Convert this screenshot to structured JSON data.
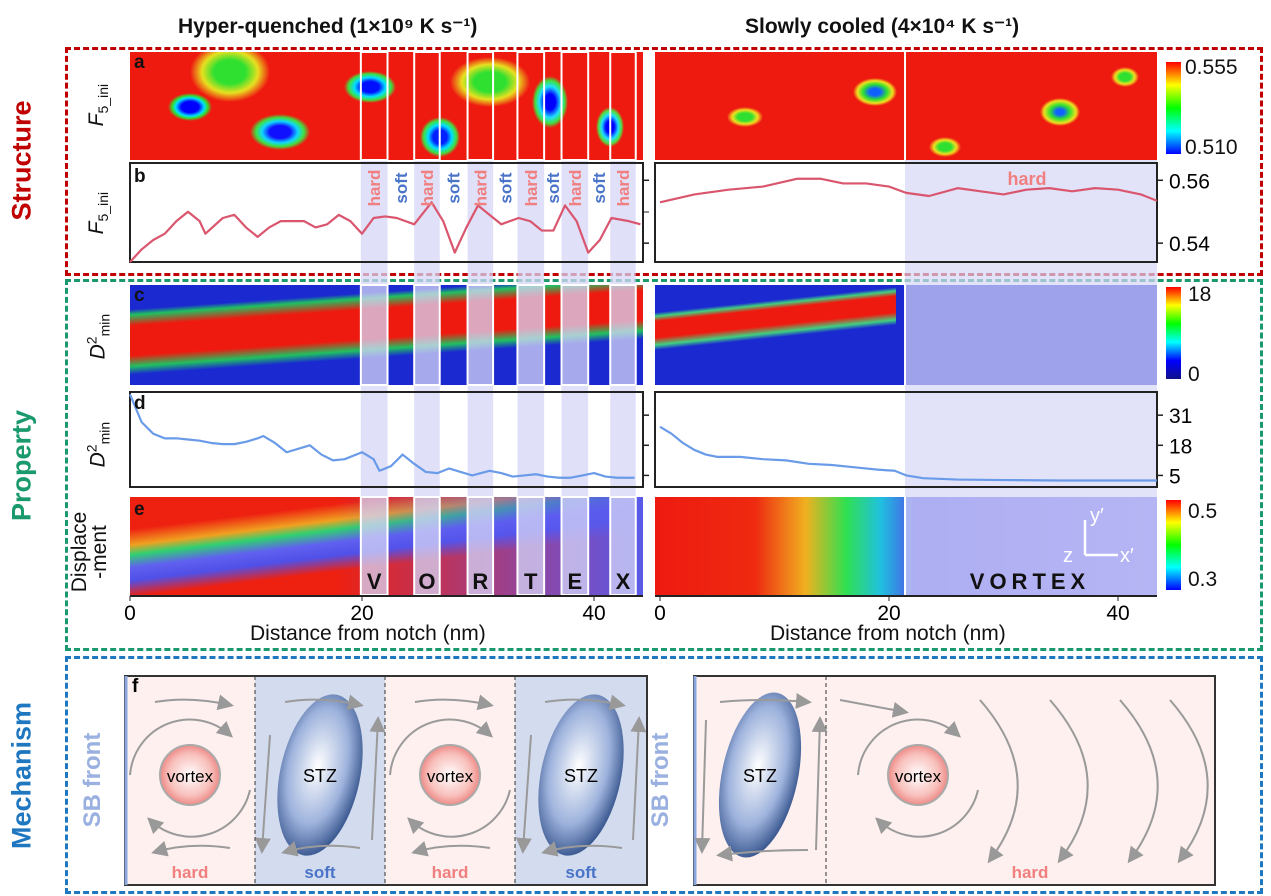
{
  "columns": {
    "left_title": "Hyper-quenched (1×10⁹ K s⁻¹)",
    "right_title": "Slowly cooled (4×10⁴ K s⁻¹)"
  },
  "sections": {
    "structure": {
      "label": "Structure",
      "color": "#c00000"
    },
    "property": {
      "label": "Property",
      "color": "#1a9a6c"
    },
    "mechanism": {
      "label": "Mechanism",
      "color": "#1f77c0"
    }
  },
  "panels": {
    "a": {
      "letter": "a",
      "ylabel": "F",
      "ylabel_sub": "5_ini",
      "colorbar_max": "0.555",
      "colorbar_min": "0.510"
    },
    "b": {
      "letter": "b",
      "ylabel": "F",
      "ylabel_sub": "5_ini"
    },
    "c": {
      "letter": "c",
      "ylabel": "D",
      "ylabel_sup": "2",
      "ylabel_sub": "min",
      "colorbar_max": "18",
      "colorbar_min": "0"
    },
    "d": {
      "letter": "d",
      "ylabel": "D",
      "ylabel_sup": "2",
      "ylabel_sub": "min"
    },
    "e": {
      "letter": "e",
      "ylabel_line1": "Displace",
      "ylabel_line2": "-ment",
      "colorbar_max": "0.5",
      "colorbar_min": "0.3",
      "axes_y": "y′",
      "axes_x": "x′",
      "axes_z": "z",
      "left_letters": [
        "V",
        "O",
        "R",
        "T",
        "E",
        "X"
      ],
      "right_word": "VORTEX"
    },
    "f": {
      "letter": "f",
      "sb_front": "SB front",
      "vortex": "vortex",
      "stz": "STZ",
      "hard": "hard",
      "soft": "soft"
    }
  },
  "colors": {
    "hard_text": "#f08080",
    "soft_text": "#4a74c8",
    "band": "#d6d6f7",
    "line_b": "#d9566e",
    "line_d": "#6a9be8",
    "hard_bg": "#fdf0ee",
    "soft_bg": "#d3dcef"
  },
  "chart_data": [
    {
      "panel": "b",
      "type": "line",
      "xlabel": "",
      "ylabel": "F5_ini",
      "yticks": [
        "0.56",
        "0.54"
      ],
      "ylim": [
        0.534,
        0.5655
      ],
      "series": [
        {
          "column": "hyper-quenched",
          "x": [
            0,
            1,
            2,
            3,
            4,
            5,
            6,
            6.5,
            8,
            9,
            10,
            11,
            12,
            13,
            14,
            15,
            16,
            17,
            18,
            19,
            20,
            21,
            22,
            23,
            24.5,
            26,
            27,
            28,
            29,
            30,
            31,
            32,
            33.5,
            34.5,
            35.5,
            36.5,
            37.5,
            38.5,
            39.5,
            40.5,
            41.5,
            43,
            44
          ],
          "y": [
            0.534,
            0.538,
            0.541,
            0.543,
            0.547,
            0.55,
            0.547,
            0.543,
            0.548,
            0.549,
            0.545,
            0.542,
            0.545,
            0.547,
            0.547,
            0.547,
            0.545,
            0.546,
            0.549,
            0.547,
            0.543,
            0.548,
            0.5485,
            0.548,
            0.546,
            0.553,
            0.547,
            0.537,
            0.545,
            0.552,
            0.549,
            0.546,
            0.548,
            0.547,
            0.544,
            0.544,
            0.552,
            0.547,
            0.537,
            0.541,
            0.548,
            0.547,
            0.546
          ]
        },
        {
          "column": "slowly cooled",
          "x": [
            0,
            3,
            6,
            9,
            12,
            14,
            16,
            18,
            20,
            21.5,
            23.5,
            26,
            28,
            30,
            32,
            34,
            36,
            38,
            40,
            42,
            43.4
          ],
          "y": [
            0.553,
            0.5555,
            0.557,
            0.558,
            0.5605,
            0.5605,
            0.559,
            0.559,
            0.558,
            0.556,
            0.555,
            0.5575,
            0.5565,
            0.5555,
            0.557,
            0.5575,
            0.5565,
            0.5575,
            0.557,
            0.5555,
            0.5535
          ]
        }
      ],
      "hard_regions": {
        "hyper-quenched": [
          [
            19.9,
            22.2
          ],
          [
            24.5,
            26.7
          ],
          [
            29.1,
            31.3
          ],
          [
            33.4,
            35.7
          ],
          [
            37.2,
            39.5
          ],
          [
            41.4,
            43.6
          ]
        ],
        "slowly cooled": [
          [
            21.4,
            43.4
          ]
        ]
      },
      "region_labels": {
        "hyper-quenched": [
          "hard",
          "soft",
          "hard",
          "soft",
          "hard",
          "soft",
          "hard",
          "soft",
          "hard",
          "soft",
          "hard"
        ],
        "slowly cooled": [
          "hard"
        ]
      }
    },
    {
      "panel": "d",
      "type": "line",
      "xlabel": "Distance from notch (nm)",
      "ylabel": "D2min",
      "yticks": [
        "31",
        "18",
        "5"
      ],
      "ylim": [
        0,
        41
      ],
      "xlim": [
        0,
        43.5
      ],
      "xticks": [
        "0",
        "20",
        "40"
      ],
      "series": [
        {
          "column": "hyper-quenched",
          "x": [
            0,
            0.5,
            1,
            2,
            3,
            4,
            5,
            6,
            7,
            8,
            9,
            10,
            11,
            11.5,
            12.5,
            13.5,
            14.5,
            15.5,
            16.5,
            17.5,
            18.5,
            20,
            21,
            21.5,
            22.5,
            23.5,
            24.5,
            25.5,
            26.5,
            27.5,
            28.5,
            29.5,
            31,
            32,
            33,
            34,
            35,
            36,
            37,
            38,
            39,
            40,
            41,
            42,
            43.5
          ],
          "y": [
            40,
            34,
            28,
            23,
            21,
            21,
            20.5,
            20,
            19,
            18.5,
            18.5,
            19.5,
            21,
            22,
            19,
            15,
            16.5,
            18,
            14,
            11.5,
            12,
            15,
            12,
            7,
            9,
            14,
            10,
            6.5,
            6,
            8,
            6.5,
            5,
            7,
            6,
            4.5,
            5,
            5.5,
            4.5,
            4,
            4,
            5,
            6,
            4.5,
            4,
            4
          ]
        },
        {
          "column": "slowly cooled",
          "x": [
            0,
            1,
            2,
            3,
            4,
            5,
            7,
            9,
            11,
            13,
            15,
            17,
            19,
            20.5,
            21.5,
            23,
            26,
            30,
            35,
            40,
            43.4
          ],
          "y": [
            26,
            23,
            19,
            16,
            14,
            13,
            13,
            12,
            11.5,
            10,
            9.5,
            8.5,
            7.5,
            7,
            5,
            3.8,
            3.2,
            3,
            2.8,
            2.8,
            2.8
          ]
        }
      ]
    }
  ]
}
